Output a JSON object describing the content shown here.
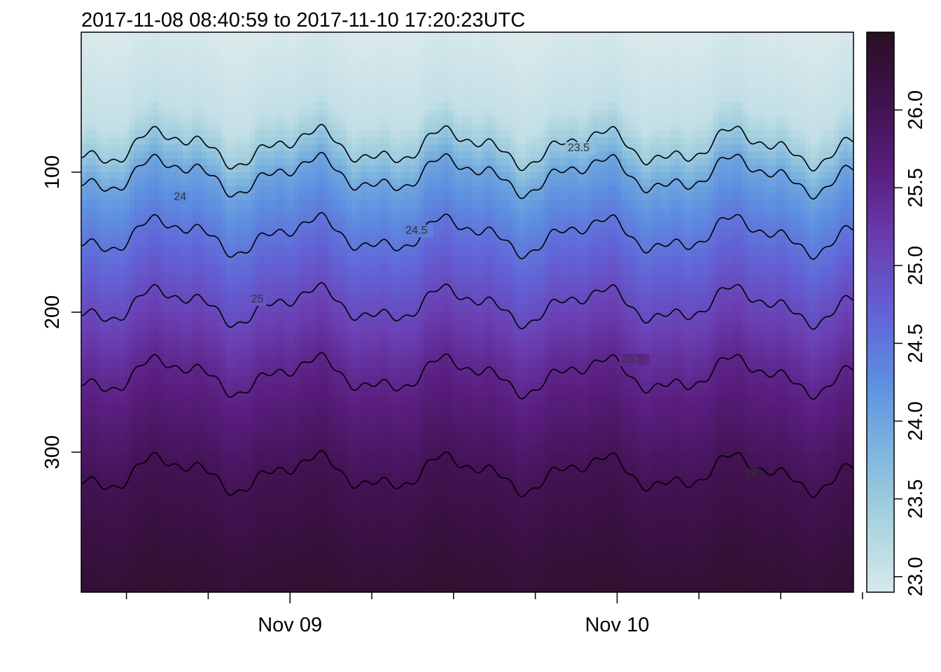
{
  "chart_data": {
    "type": "heatmap",
    "title": "2017-11-08 08:40:59 to 2017-11-10 17:20:23UTC",
    "xlabel": "",
    "ylabel": "",
    "x_range": [
      "2017-11-08 08:40:59",
      "2017-11-10 17:20:23"
    ],
    "x_tick_labels": [
      "Nov 09",
      "Nov 10"
    ],
    "x_tick_positions": [
      "2017-11-09 00:00",
      "2017-11-10 00:00"
    ],
    "x_minor_ticks": [
      "2017-11-08 12:00",
      "2017-11-08 18:00",
      "2017-11-09 06:00",
      "2017-11-09 12:00",
      "2017-11-09 18:00",
      "2017-11-10 06:00",
      "2017-11-10 12:00",
      "2017-11-10 18:00"
    ],
    "y_range": [
      0,
      400
    ],
    "y_reversed": true,
    "y_tick_labels": [
      "100",
      "200",
      "300"
    ],
    "y_ticks": [
      100,
      200,
      300
    ],
    "colorbar": {
      "range": [
        22.9,
        26.5
      ],
      "ticks": [
        23.0,
        23.5,
        24.0,
        24.5,
        25.0,
        25.5,
        26.0
      ],
      "tick_labels": [
        "23.0",
        "23.5",
        "24.0",
        "24.5",
        "25.0",
        "25.5",
        "26.0"
      ],
      "palette": [
        "#d8e9ec",
        "#a9d3df",
        "#7eb6de",
        "#5d8fe0",
        "#6262d6",
        "#6a3eb1",
        "#5a1e80",
        "#40124f",
        "#2a0f22"
      ]
    },
    "contours": [
      {
        "level": 23.5,
        "label": "23.5",
        "label_pos": [
          0.63,
          85
        ],
        "mean_depth": 82
      },
      {
        "level": 24.0,
        "label": "24",
        "label_pos": [
          0.12,
          120
        ],
        "mean_depth": 102
      },
      {
        "level": 24.5,
        "label": "24.5",
        "label_pos": [
          0.42,
          144
        ],
        "mean_depth": 145
      },
      {
        "level": 25.0,
        "label": "25",
        "label_pos": [
          0.22,
          193
        ],
        "mean_depth": 195
      },
      {
        "level": 25.5,
        "label": "25.5",
        "label_pos": [
          0.7,
          236
        ],
        "mean_depth": 245
      },
      {
        "level": 26.0,
        "label": "26",
        "label_pos": [
          0.86,
          318
        ],
        "mean_depth": 315
      }
    ],
    "grid": false,
    "legend": "colorbar-right"
  }
}
